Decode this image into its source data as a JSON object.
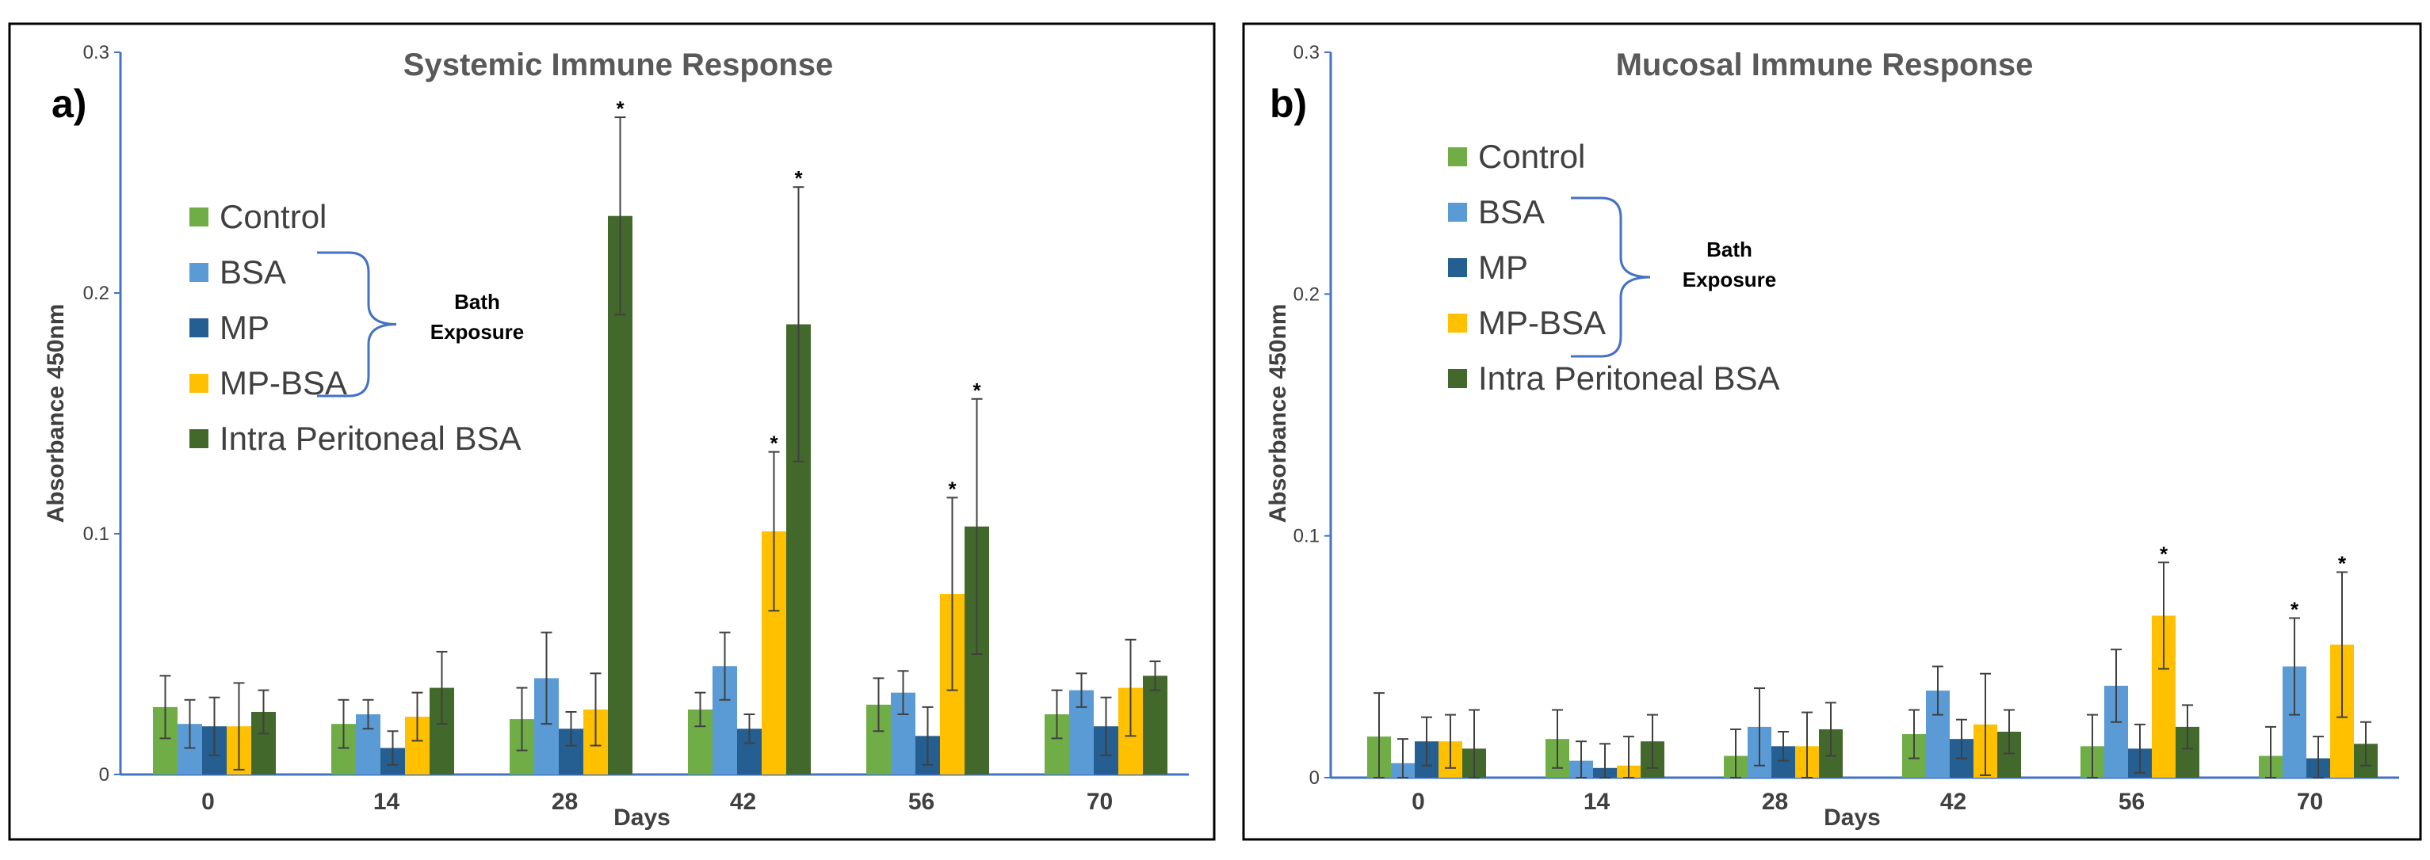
{
  "chart_data": [
    {
      "type": "bar",
      "panel_label": "a)",
      "title": "Systemic Immune Response",
      "xlabel": "Days",
      "ylabel": "Absorbance  450nm",
      "ylim": [
        0,
        0.3
      ],
      "yticks": [
        "0",
        "0.1",
        "0.2",
        "0.3"
      ],
      "categories": [
        "0",
        "14",
        "28",
        "42",
        "56",
        "70"
      ],
      "series": [
        {
          "name": "Control",
          "color": "#70AD47",
          "values": [
            0.028,
            0.021,
            0.023,
            0.027,
            0.029,
            0.025
          ],
          "errors": [
            0.013,
            0.01,
            0.013,
            0.007,
            0.011,
            0.01
          ]
        },
        {
          "name": "BSA",
          "color": "#5B9BD5",
          "values": [
            0.021,
            0.025,
            0.04,
            0.045,
            0.034,
            0.035
          ],
          "errors": [
            0.01,
            0.006,
            0.019,
            0.014,
            0.009,
            0.007
          ]
        },
        {
          "name": "MP",
          "color": "#255E91",
          "values": [
            0.02,
            0.011,
            0.019,
            0.019,
            0.016,
            0.02
          ],
          "errors": [
            0.012,
            0.007,
            0.007,
            0.006,
            0.012,
            0.012
          ]
        },
        {
          "name": "MP-BSA",
          "color": "#FFC000",
          "values": [
            0.02,
            0.024,
            0.027,
            0.101,
            0.075,
            0.036
          ],
          "errors": [
            0.018,
            0.01,
            0.015,
            0.033,
            0.04,
            0.02
          ]
        },
        {
          "name": "Intra Peritoneal BSA",
          "color": "#43682B",
          "values": [
            0.026,
            0.036,
            0.232,
            0.187,
            0.103,
            0.041
          ],
          "errors": [
            0.009,
            0.015,
            0.041,
            0.057,
            0.053,
            0.006
          ]
        }
      ],
      "significance": [
        {
          "category": "28",
          "series": "Intra Peritoneal BSA",
          "label": "*"
        },
        {
          "category": "42",
          "series": "MP-BSA",
          "label": "*"
        },
        {
          "category": "42",
          "series": "Intra Peritoneal BSA",
          "label": "*"
        },
        {
          "category": "56",
          "series": "MP-BSA",
          "label": "*"
        },
        {
          "category": "56",
          "series": "Intra Peritoneal BSA",
          "label": "*"
        }
      ],
      "bracket_label": [
        "Bath",
        "Exposure"
      ],
      "bracket_series": [
        "BSA",
        "MP-BSA"
      ],
      "legend_position": "left"
    },
    {
      "type": "bar",
      "panel_label": "b)",
      "title": "Mucosal Immune Response",
      "xlabel": "Days",
      "ylabel": "Absorbance  450nm",
      "ylim": [
        0,
        0.3
      ],
      "yticks": [
        "0",
        "0.1",
        "0.2",
        "0.3"
      ],
      "categories": [
        "0",
        "14",
        "28",
        "42",
        "56",
        "70"
      ],
      "series": [
        {
          "name": "Control",
          "color": "#70AD47",
          "values": [
            0.017,
            0.016,
            0.009,
            0.018,
            0.013,
            0.009
          ],
          "errors": [
            0.018,
            0.012,
            0.011,
            0.01,
            0.013,
            0.012
          ]
        },
        {
          "name": "BSA",
          "color": "#5B9BD5",
          "values": [
            0.006,
            0.007,
            0.021,
            0.036,
            0.038,
            0.046
          ],
          "errors": [
            0.01,
            0.008,
            0.016,
            0.01,
            0.015,
            0.02
          ]
        },
        {
          "name": "MP",
          "color": "#255E91",
          "values": [
            0.015,
            0.004,
            0.013,
            0.016,
            0.012,
            0.008
          ],
          "errors": [
            0.01,
            0.01,
            0.006,
            0.008,
            0.01,
            0.009
          ]
        },
        {
          "name": "MP-BSA",
          "color": "#FFC000",
          "values": [
            0.015,
            0.005,
            0.013,
            0.022,
            0.067,
            0.055
          ],
          "errors": [
            0.011,
            0.012,
            0.014,
            0.021,
            0.022,
            0.03
          ]
        },
        {
          "name": "Intra Peritoneal BSA",
          "color": "#43682B",
          "values": [
            0.012,
            0.015,
            0.02,
            0.019,
            0.021,
            0.014
          ],
          "errors": [
            0.016,
            0.011,
            0.011,
            0.009,
            0.009,
            0.009
          ]
        }
      ],
      "significance": [
        {
          "category": "56",
          "series": "MP-BSA",
          "label": "*"
        },
        {
          "category": "70",
          "series": "BSA",
          "label": "*"
        },
        {
          "category": "70",
          "series": "MP-BSA",
          "label": "*"
        }
      ],
      "bracket_label": [
        "Bath",
        "Exposure"
      ],
      "bracket_series": [
        "BSA",
        "MP-BSA"
      ],
      "legend_position": "top-left"
    }
  ]
}
